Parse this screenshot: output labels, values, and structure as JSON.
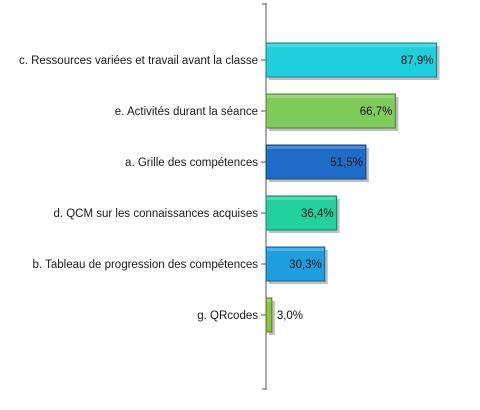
{
  "chart_data": {
    "type": "bar",
    "orientation": "horizontal",
    "categories": [
      "c. Ressources variées et travail avant la classe",
      "e. Activités durant la séance",
      "a. Grille des compétences",
      "d. QCM sur les connaissances acquises",
      "b. Tableau de progression des compétences",
      "g. QRcodes"
    ],
    "values": [
      87.9,
      66.7,
      51.5,
      36.4,
      30.3,
      3.0
    ],
    "value_labels": [
      "87,9%",
      "66,7%",
      "51,5%",
      "36,4%",
      "30,3%",
      "3,0%"
    ],
    "colors": [
      "#1fcfdb",
      "#7ecb5a",
      "#1f6cc8",
      "#23d19e",
      "#1e9ddf",
      "#8cc342"
    ],
    "xlim": [
      0,
      100
    ],
    "title": "",
    "xlabel": "",
    "ylabel": "",
    "grid": false,
    "legend": "none"
  }
}
